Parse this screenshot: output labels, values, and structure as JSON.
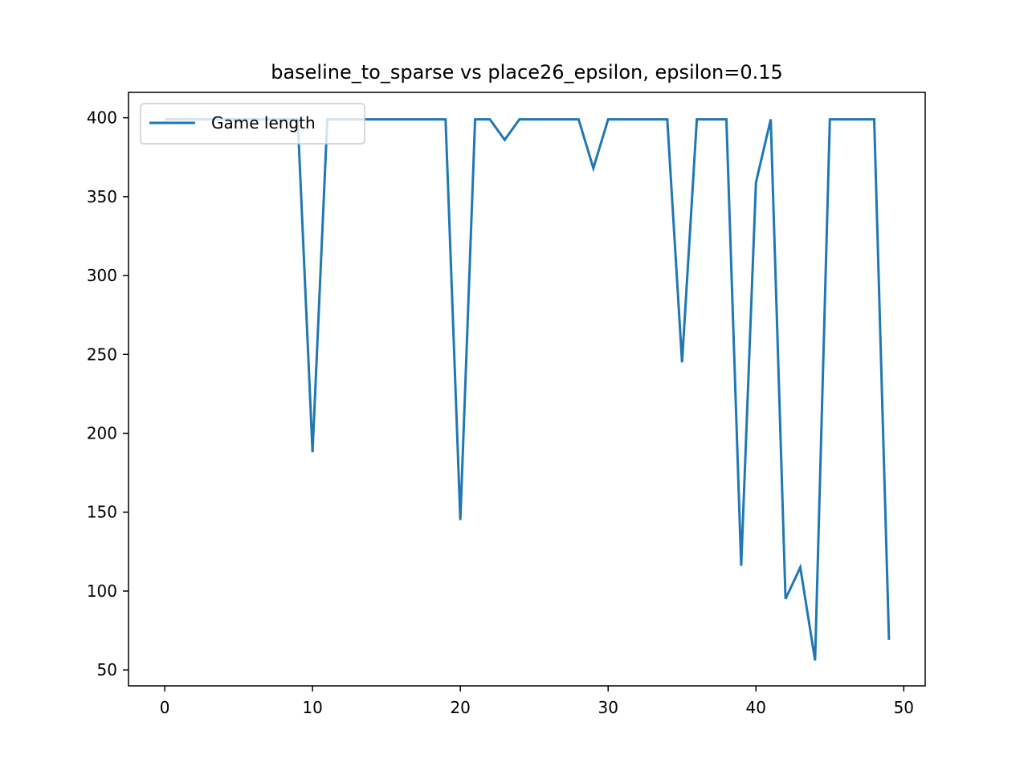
{
  "chart_data": {
    "type": "line",
    "title": "baseline_to_sparse vs place26_epsilon, epsilon=0.15",
    "xlabel": "",
    "ylabel": "",
    "xlim": [
      -2.45,
      51.45
    ],
    "ylim": [
      39.9,
      416.1
    ],
    "xticks": [
      0,
      10,
      20,
      30,
      40,
      50
    ],
    "yticks": [
      50,
      100,
      150,
      200,
      250,
      300,
      350,
      400
    ],
    "grid": false,
    "legend_position": "upper left",
    "colors": {
      "series": "#1f77b4"
    },
    "series": [
      {
        "name": "Game length",
        "x": [
          0,
          1,
          2,
          3,
          4,
          5,
          6,
          7,
          8,
          9,
          10,
          11,
          12,
          13,
          14,
          15,
          16,
          17,
          18,
          19,
          20,
          21,
          22,
          23,
          24,
          25,
          26,
          27,
          28,
          29,
          30,
          31,
          32,
          33,
          34,
          35,
          36,
          37,
          38,
          39,
          40,
          41,
          42,
          43,
          44,
          45,
          46,
          47,
          48,
          49
        ],
        "values": [
          399,
          399,
          399,
          399,
          399,
          399,
          399,
          399,
          399,
          399,
          188,
          399,
          399,
          399,
          399,
          399,
          399,
          399,
          399,
          399,
          145,
          399,
          399,
          386,
          399,
          399,
          399,
          399,
          399,
          368,
          399,
          399,
          399,
          399,
          399,
          245,
          399,
          399,
          399,
          116,
          359,
          399,
          95,
          115,
          56,
          399,
          399,
          399,
          399,
          69
        ]
      }
    ]
  }
}
